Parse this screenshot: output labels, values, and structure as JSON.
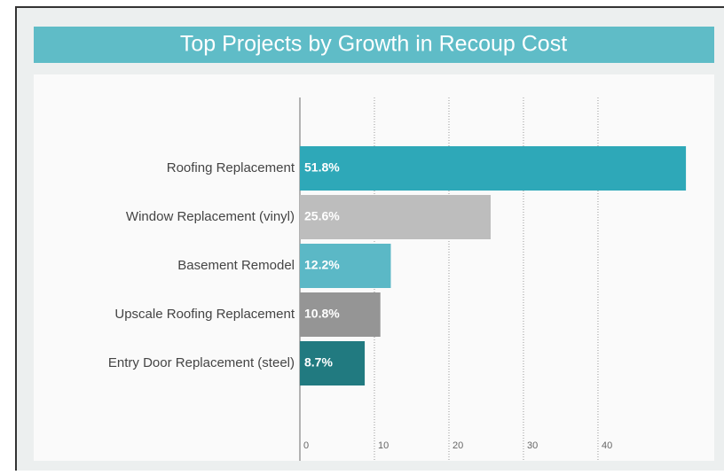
{
  "chart_data": {
    "type": "bar",
    "orientation": "horizontal",
    "title": "Top Projects by Growth in Recoup Cost",
    "categories": [
      "Roofing Replacement",
      "Window Replacement (vinyl)",
      "Basement Remodel",
      "Upscale Roofing Replacement",
      "Entry Door Replacement (steel)"
    ],
    "values": [
      51.8,
      25.6,
      12.2,
      10.8,
      8.7
    ],
    "value_labels": [
      "51.8%",
      "25.6%",
      "12.2%",
      "10.8%",
      "8.7%"
    ],
    "colors": [
      "#2ea8b8",
      "#bdbdbd",
      "#5bb8c6",
      "#959595",
      "#217a80"
    ],
    "xlim": [
      0,
      55.6
    ],
    "xticks": [
      0,
      10,
      20,
      30,
      40
    ],
    "grid": true
  }
}
